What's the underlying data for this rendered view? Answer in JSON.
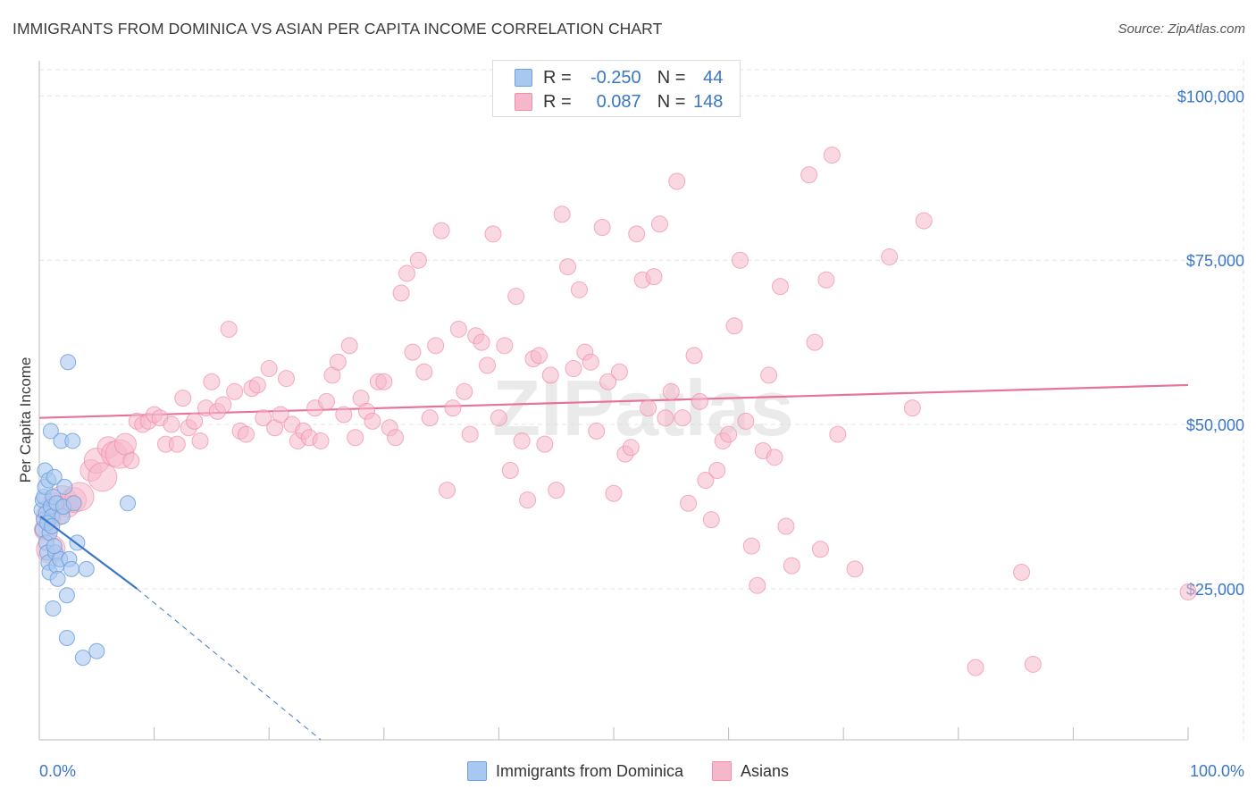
{
  "title": "IMMIGRANTS FROM DOMINICA VS ASIAN PER CAPITA INCOME CORRELATION CHART",
  "source": "Source: ZipAtlas.com",
  "watermark": "ZIPatlas",
  "legend": {
    "rows": [
      {
        "r_label": "R =",
        "r_value": "-0.250",
        "n_label": "N =",
        "n_value": "44",
        "color": "#a9c8f0"
      },
      {
        "r_label": "R =",
        "r_value": "0.087",
        "n_label": "N =",
        "n_value": "148",
        "color": "#f5b8cb"
      }
    ]
  },
  "bottom_legend": [
    {
      "label": "Immigrants from Dominica",
      "color": "#a9c8f0"
    },
    {
      "label": "Asians",
      "color": "#f5b8cb"
    }
  ],
  "chart_data": {
    "type": "scatter",
    "title": "IMMIGRANTS FROM DOMINICA VS ASIAN PER CAPITA INCOME CORRELATION CHART",
    "xlabel": "",
    "ylabel": "Per Capita Income",
    "xlim": [
      0,
      100
    ],
    "ylim": [
      2000,
      104000
    ],
    "x_tick_labels": [
      "0.0%",
      "100.0%"
    ],
    "y_ticks": [
      25000,
      50000,
      75000,
      100000
    ],
    "y_tick_labels": [
      "$25,000",
      "$50,000",
      "$75,000",
      "$100,000"
    ],
    "grid": true,
    "series": [
      {
        "name": "Immigrants from Dominica",
        "color": "#6f9fdc",
        "fill": "#a9c8f0",
        "trend": {
          "x0": 0.1,
          "y0": 36000,
          "x1": 8.5,
          "y1": 25000,
          "dash_to_x": 24.5,
          "dash_to_y": 2000,
          "color": "#3a76c8"
        },
        "points": [
          [
            0.2,
            37000
          ],
          [
            0.3,
            38500
          ],
          [
            0.3,
            34000
          ],
          [
            0.4,
            35500
          ],
          [
            0.4,
            39000
          ],
          [
            0.5,
            40500
          ],
          [
            0.5,
            43000
          ],
          [
            0.6,
            36500
          ],
          [
            0.6,
            32000
          ],
          [
            0.7,
            30500
          ],
          [
            0.8,
            41500
          ],
          [
            0.8,
            29000
          ],
          [
            0.9,
            27500
          ],
          [
            0.9,
            33500
          ],
          [
            1.0,
            37500
          ],
          [
            1.0,
            49000
          ],
          [
            1.1,
            36000
          ],
          [
            1.2,
            39000
          ],
          [
            1.2,
            22000
          ],
          [
            1.3,
            42000
          ],
          [
            1.4,
            30500
          ],
          [
            1.5,
            28500
          ],
          [
            1.5,
            38000
          ],
          [
            1.6,
            26500
          ],
          [
            1.8,
            29500
          ],
          [
            1.9,
            47500
          ],
          [
            2.0,
            36000
          ],
          [
            2.1,
            37500
          ],
          [
            2.2,
            40500
          ],
          [
            2.4,
            24000
          ],
          [
            2.4,
            17500
          ],
          [
            2.5,
            59500
          ],
          [
            2.6,
            29500
          ],
          [
            2.8,
            28000
          ],
          [
            2.9,
            47500
          ],
          [
            3.0,
            38000
          ],
          [
            3.3,
            32000
          ],
          [
            3.8,
            14500
          ],
          [
            4.1,
            28000
          ],
          [
            5.0,
            15500
          ],
          [
            7.7,
            38000
          ],
          [
            0.7,
            35000
          ],
          [
            1.1,
            34500
          ],
          [
            1.3,
            31500
          ]
        ]
      },
      {
        "name": "Asians",
        "color": "#f08cab",
        "fill": "#f5b8cb",
        "trend": {
          "x0": 0,
          "y0": 51000,
          "x1": 100,
          "y1": 56000,
          "color": "#e8729a"
        },
        "points": [
          [
            0.5,
            34000
          ],
          [
            0.8,
            36000
          ],
          [
            1.0,
            31000
          ],
          [
            1.2,
            38000
          ],
          [
            1.5,
            36500
          ],
          [
            2.0,
            38500
          ],
          [
            2.5,
            37500
          ],
          [
            3.0,
            38500
          ],
          [
            3.5,
            39000
          ],
          [
            4.5,
            43000
          ],
          [
            5.0,
            44500
          ],
          [
            5.5,
            42000
          ],
          [
            6.0,
            46500
          ],
          [
            6.5,
            45500
          ],
          [
            7.0,
            45500
          ],
          [
            7.5,
            47000
          ],
          [
            8.0,
            44500
          ],
          [
            8.5,
            50500
          ],
          [
            9.0,
            50000
          ],
          [
            9.5,
            50500
          ],
          [
            10.0,
            51500
          ],
          [
            10.5,
            51000
          ],
          [
            11.0,
            47000
          ],
          [
            11.5,
            50000
          ],
          [
            12.0,
            47000
          ],
          [
            12.5,
            54000
          ],
          [
            13.0,
            49500
          ],
          [
            13.5,
            50500
          ],
          [
            14.0,
            47500
          ],
          [
            14.5,
            52500
          ],
          [
            15.0,
            56500
          ],
          [
            15.5,
            52000
          ],
          [
            16.0,
            53000
          ],
          [
            16.5,
            64500
          ],
          [
            17.0,
            55000
          ],
          [
            17.5,
            49000
          ],
          [
            18.0,
            48500
          ],
          [
            18.5,
            55500
          ],
          [
            19.0,
            56000
          ],
          [
            19.5,
            51000
          ],
          [
            20.0,
            58500
          ],
          [
            20.5,
            49500
          ],
          [
            21.0,
            51500
          ],
          [
            21.5,
            57000
          ],
          [
            22.0,
            50000
          ],
          [
            22.5,
            47500
          ],
          [
            23.0,
            49000
          ],
          [
            23.5,
            48000
          ],
          [
            24.0,
            52500
          ],
          [
            24.5,
            47500
          ],
          [
            25.0,
            53500
          ],
          [
            25.5,
            57500
          ],
          [
            26.0,
            59500
          ],
          [
            26.5,
            51500
          ],
          [
            27.0,
            62000
          ],
          [
            27.5,
            48000
          ],
          [
            28.0,
            54000
          ],
          [
            28.5,
            52000
          ],
          [
            29.0,
            50500
          ],
          [
            29.5,
            56500
          ],
          [
            30.0,
            56500
          ],
          [
            30.5,
            49500
          ],
          [
            31.0,
            48000
          ],
          [
            31.5,
            70000
          ],
          [
            32.0,
            73000
          ],
          [
            32.5,
            61000
          ],
          [
            33.0,
            75000
          ],
          [
            33.5,
            58000
          ],
          [
            34.0,
            51000
          ],
          [
            34.5,
            62000
          ],
          [
            35.0,
            79500
          ],
          [
            35.5,
            40000
          ],
          [
            36.0,
            52500
          ],
          [
            36.5,
            64500
          ],
          [
            37.0,
            55000
          ],
          [
            37.5,
            48500
          ],
          [
            38.0,
            63500
          ],
          [
            38.5,
            62500
          ],
          [
            39.0,
            59000
          ],
          [
            39.5,
            79000
          ],
          [
            40.0,
            51000
          ],
          [
            40.5,
            62000
          ],
          [
            41.0,
            43000
          ],
          [
            41.5,
            69500
          ],
          [
            42.0,
            47500
          ],
          [
            42.5,
            38500
          ],
          [
            43.0,
            60000
          ],
          [
            43.5,
            60500
          ],
          [
            44.0,
            47000
          ],
          [
            44.5,
            57500
          ],
          [
            45.0,
            40000
          ],
          [
            45.5,
            82000
          ],
          [
            46.0,
            74000
          ],
          [
            46.5,
            58500
          ],
          [
            47.0,
            70500
          ],
          [
            47.5,
            61000
          ],
          [
            48.0,
            59500
          ],
          [
            48.5,
            49000
          ],
          [
            49.0,
            80000
          ],
          [
            49.5,
            56500
          ],
          [
            50.0,
            39500
          ],
          [
            50.5,
            58000
          ],
          [
            51.0,
            45500
          ],
          [
            51.5,
            46500
          ],
          [
            52.0,
            79000
          ],
          [
            52.5,
            72000
          ],
          [
            53.0,
            52500
          ],
          [
            53.5,
            72500
          ],
          [
            54.0,
            80500
          ],
          [
            54.5,
            51000
          ],
          [
            55.0,
            55000
          ],
          [
            55.5,
            87000
          ],
          [
            56.0,
            51000
          ],
          [
            56.5,
            38000
          ],
          [
            57.0,
            60500
          ],
          [
            57.5,
            53500
          ],
          [
            58.0,
            41500
          ],
          [
            58.5,
            35500
          ],
          [
            59.0,
            43000
          ],
          [
            59.5,
            47500
          ],
          [
            60.0,
            48500
          ],
          [
            60.5,
            65000
          ],
          [
            61.0,
            75000
          ],
          [
            61.5,
            50500
          ],
          [
            62.0,
            31500
          ],
          [
            62.5,
            25500
          ],
          [
            63.0,
            46000
          ],
          [
            63.5,
            57500
          ],
          [
            64.0,
            45000
          ],
          [
            64.5,
            71000
          ],
          [
            65.0,
            34500
          ],
          [
            65.5,
            28500
          ],
          [
            67.0,
            88000
          ],
          [
            67.5,
            62500
          ],
          [
            68.0,
            31000
          ],
          [
            68.5,
            72000
          ],
          [
            69.0,
            91000
          ],
          [
            69.5,
            48500
          ],
          [
            71.0,
            28000
          ],
          [
            74.0,
            75500
          ],
          [
            76.0,
            52500
          ],
          [
            77.0,
            81000
          ],
          [
            81.5,
            13000
          ],
          [
            85.5,
            27500
          ],
          [
            86.5,
            13500
          ],
          [
            100.0,
            24500
          ]
        ]
      }
    ]
  }
}
